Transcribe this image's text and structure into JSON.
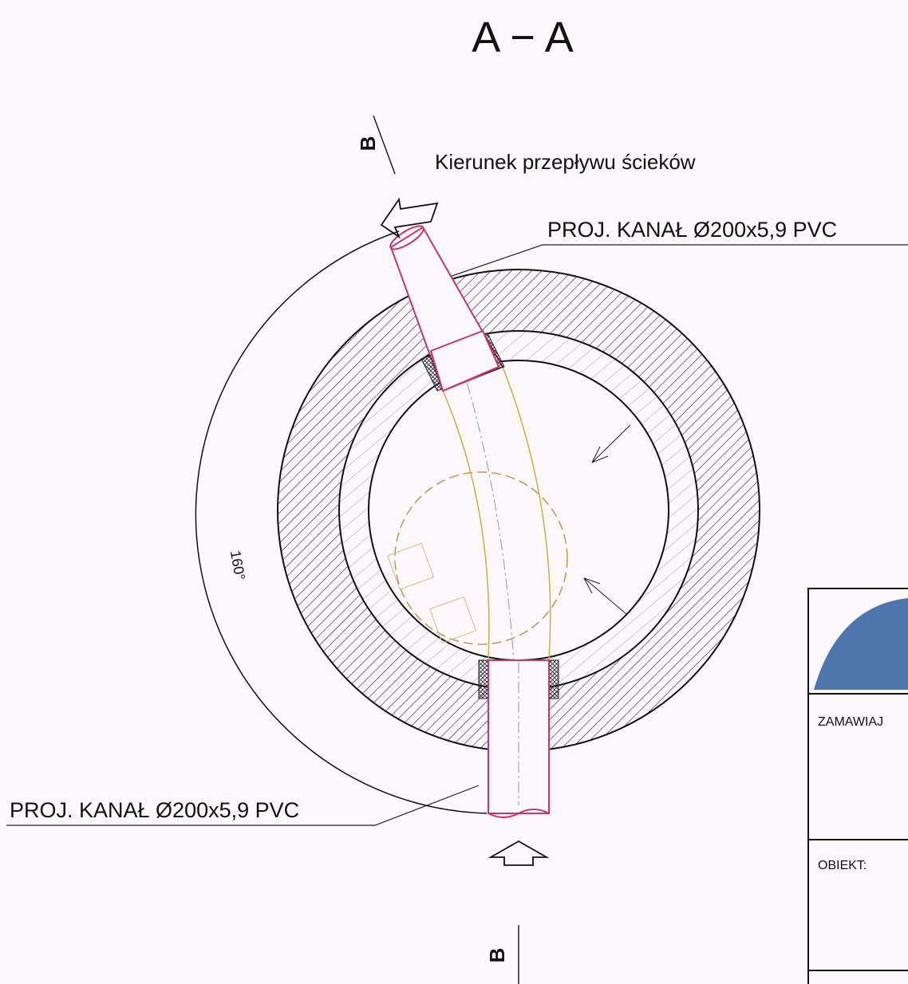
{
  "title": "A − A",
  "section_marks": [
    "B",
    "B"
  ],
  "flow_label": "Kierunek przepływu ścieków",
  "pipe_labels": [
    "PROJ. KANAŁ Ø200x5,9 PVC",
    "PROJ. KANAŁ Ø200x5,9 PVC"
  ],
  "angle_label": "160°",
  "title_block": {
    "client_label": "ZAMAWIAJ",
    "object_label": "OBIEKT:"
  }
}
